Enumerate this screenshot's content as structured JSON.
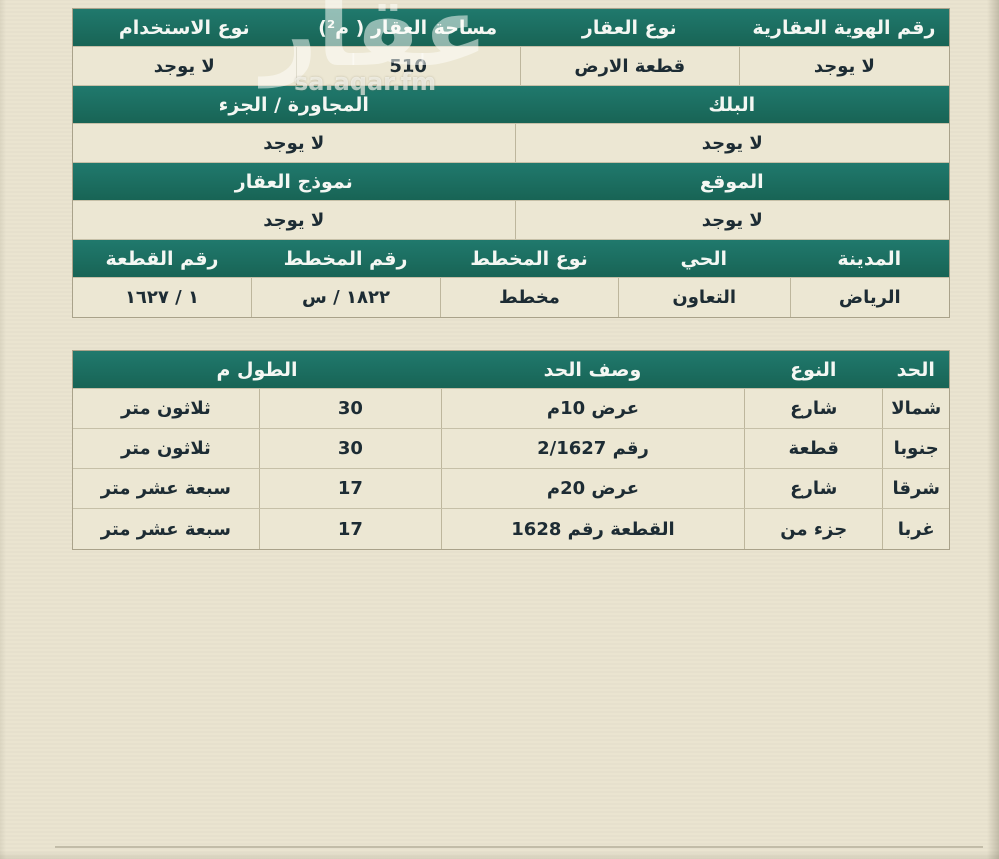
{
  "document": {
    "watermark": {
      "logo_text": "عقار",
      "site_text": "sa.aqar.fm"
    },
    "property_table": {
      "sections": [
        {
          "headers": [
            "رقم الهوية العقارية",
            "نوع العقار",
            "مساحة العقار ( م²)",
            "نوع الاستخدام"
          ],
          "values": [
            "لا يوجد",
            "قطعة الارض",
            "510",
            "لا يوجد"
          ]
        },
        {
          "headers": [
            "البلك",
            "المجاورة / الجزء"
          ],
          "values": [
            "لا يوجد",
            "لا يوجد"
          ]
        },
        {
          "headers": [
            "الموقع",
            "نموذج العقار"
          ],
          "values": [
            "لا يوجد",
            "لا يوجد"
          ]
        },
        {
          "headers": [
            "المدينة",
            "الحي",
            "نوع المخطط",
            "رقم المخطط",
            "رقم القطعة"
          ],
          "values": [
            "الرياض",
            "التعاون",
            "مخطط",
            "١٨٢٢ / س",
            "١ / ١٦٢٧"
          ]
        }
      ]
    },
    "boundaries_table": {
      "headers": [
        "الحد",
        "النوع",
        "وصف الحد",
        "الطول م"
      ],
      "rows": [
        {
          "side": "شمالا",
          "type": "شارع",
          "description": "عرض 10م",
          "length": "30",
          "length_text": "ثلاثون متر"
        },
        {
          "side": "جنوبا",
          "type": "قطعة",
          "description": "رقم 2/1627",
          "length": "30",
          "length_text": "ثلاثون متر"
        },
        {
          "side": "شرقا",
          "type": "شارع",
          "description": "عرض 20م",
          "length": "17",
          "length_text": "سبعة عشر متر"
        },
        {
          "side": "غربا",
          "type": "جزء من",
          "description": "القطعة رقم 1628",
          "length": "17",
          "length_text": "سبعة عشر متر"
        }
      ]
    },
    "colors": {
      "header_green": "#1d7166",
      "cell_cream": "#ece7d3",
      "page_beige": "#e9e3cf",
      "text_dark": "#1d2c34",
      "header_text": "#f4f7f3"
    }
  }
}
